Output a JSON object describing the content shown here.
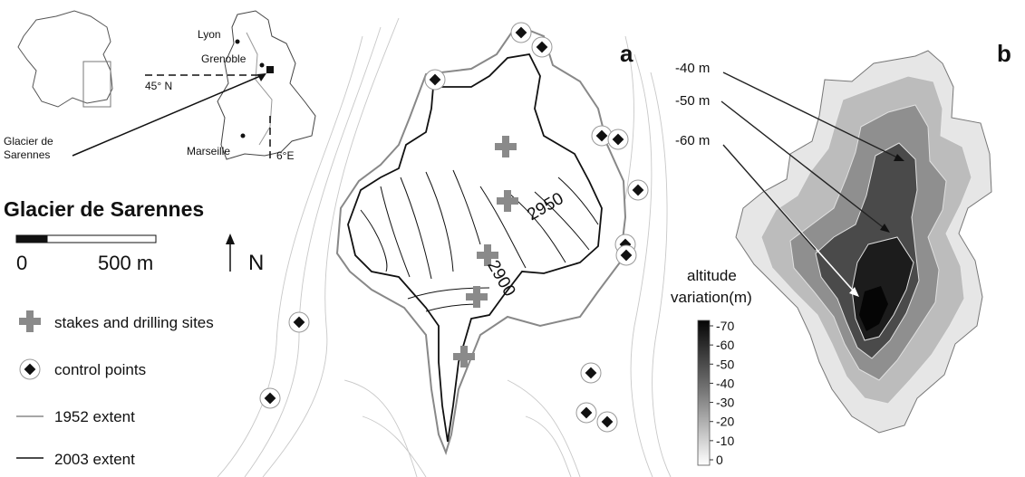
{
  "inset": {
    "cities": [
      "Lyon",
      "Grenoble",
      "Marseille"
    ],
    "lat_label": "45° N",
    "lon_label": "6°E",
    "glacier_label_line1": "Glacier de",
    "glacier_label_line2": "Sarennes"
  },
  "title": "Glacier de Sarennes",
  "scale": {
    "zero": "0",
    "length": "500 m"
  },
  "north": "N",
  "legend": {
    "stakes": "stakes and drilling sites",
    "control": "control points",
    "extent_1952": "1952 extent",
    "extent_2003": "2003 extent"
  },
  "panel_a": {
    "letter": "a",
    "contours": [
      "2950",
      "2900"
    ]
  },
  "panel_b": {
    "letter": "b",
    "depth_labels": [
      "-40 m",
      "-50 m",
      "-60 m"
    ],
    "colorbar_title_line1": "altitude",
    "colorbar_title_line2": "variation(m)",
    "colorbar_ticks": [
      "-70",
      "-60",
      "-50",
      "-40",
      "-30",
      "-20",
      "-10",
      "0"
    ]
  },
  "colors": {
    "extent_1952": "#888888",
    "extent_2003": "#111111",
    "stake": "#8a8a8a",
    "deep": "#0a0a0a"
  }
}
